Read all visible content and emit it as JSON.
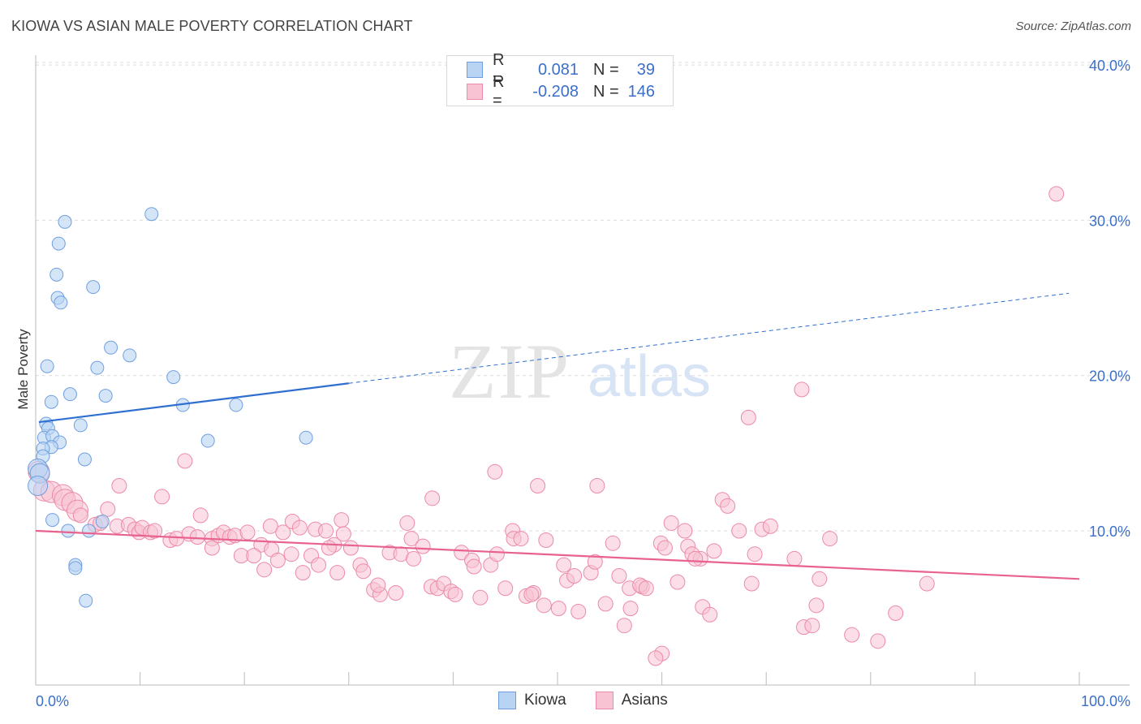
{
  "header": {
    "title": "KIOWA VS ASIAN MALE POVERTY CORRELATION CHART",
    "source": "Source: ZipAtlas.com"
  },
  "legend_top": {
    "rows": [
      {
        "r_label": "R =",
        "r_value": "0.081",
        "n_label": "N =",
        "n_value": "39"
      },
      {
        "r_label": "R =",
        "r_value": "-0.208",
        "n_label": "N =",
        "n_value": "146"
      }
    ]
  },
  "watermark": {
    "zip": "ZIP",
    "atlas": "atlas"
  },
  "colors": {
    "kiowa_fill": "#b9d3f3",
    "kiowa_stroke": "#6f9fe0",
    "kiowa_line": "#2f6fd1",
    "asians_fill": "#f8c3d3",
    "asians_stroke": "#ec8aa8",
    "asians_line": "#e8628f",
    "tick_label": "#3b6fc9",
    "grid": "#dddddd"
  },
  "chart_data": {
    "type": "scatter",
    "xlabel": "",
    "ylabel": "Male Poverty",
    "xlim": [
      0,
      100
    ],
    "ylim": [
      0,
      42
    ],
    "x_tick_labels": [
      {
        "value": 0,
        "label": "0.0%"
      },
      {
        "value": 100,
        "label": "100.0%"
      }
    ],
    "y_tick_labels": [
      {
        "value": 10,
        "label": "10.0%"
      },
      {
        "value": 20,
        "label": "20.0%"
      },
      {
        "value": 30,
        "label": "30.0%"
      },
      {
        "value": 40,
        "label": "40.0%"
      }
    ],
    "grid": "horizontal dashed",
    "legend": "bottom-center",
    "series": [
      {
        "name": "Kiowa",
        "trend": {
          "x0": 0.3,
          "y0": 17.0,
          "x1": 30,
          "y1": 19.5,
          "dashed_to_x": 99,
          "dashed_to_y": 25.3
        },
        "points": [
          [
            2.8,
            29.9
          ],
          [
            11.1,
            30.4
          ],
          [
            2.2,
            28.5
          ],
          [
            2.0,
            26.5
          ],
          [
            5.5,
            25.7
          ],
          [
            2.1,
            25.0
          ],
          [
            2.4,
            24.7
          ],
          [
            7.2,
            21.8
          ],
          [
            9.0,
            21.3
          ],
          [
            1.1,
            20.6
          ],
          [
            5.9,
            20.5
          ],
          [
            13.2,
            19.9
          ],
          [
            3.3,
            18.8
          ],
          [
            6.7,
            18.7
          ],
          [
            1.5,
            18.3
          ],
          [
            14.1,
            18.1
          ],
          [
            19.2,
            18.1
          ],
          [
            1.0,
            16.9
          ],
          [
            1.2,
            16.6
          ],
          [
            4.3,
            16.8
          ],
          [
            0.8,
            16.0
          ],
          [
            1.6,
            16.1
          ],
          [
            2.3,
            15.7
          ],
          [
            16.5,
            15.8
          ],
          [
            25.9,
            16.0
          ],
          [
            1.5,
            15.4
          ],
          [
            0.7,
            15.3
          ],
          [
            0.7,
            14.8
          ],
          [
            4.7,
            14.6
          ],
          [
            0.2,
            14.0
          ],
          [
            0.4,
            13.7
          ],
          [
            6.4,
            10.6
          ],
          [
            1.6,
            10.7
          ],
          [
            3.1,
            10.0
          ],
          [
            5.1,
            10.0
          ],
          [
            3.8,
            7.8
          ],
          [
            3.8,
            7.6
          ],
          [
            4.8,
            5.5
          ],
          [
            0.2,
            12.9
          ]
        ]
      },
      {
        "name": "Asians",
        "trend": {
          "x0": 0,
          "y0": 10.0,
          "x1": 100,
          "y1": 6.9
        },
        "points": [
          [
            0.3,
            13.8
          ],
          [
            0.8,
            12.6
          ],
          [
            1.5,
            12.5
          ],
          [
            2.6,
            12.3
          ],
          [
            2.8,
            12.0
          ],
          [
            3.5,
            11.8
          ],
          [
            4.0,
            11.3
          ],
          [
            4.3,
            11.0
          ],
          [
            6.9,
            11.4
          ],
          [
            5.7,
            10.4
          ],
          [
            6.2,
            10.5
          ],
          [
            7.8,
            10.3
          ],
          [
            8.0,
            12.9
          ],
          [
            8.9,
            10.4
          ],
          [
            9.5,
            10.1
          ],
          [
            9.9,
            9.9
          ],
          [
            10.2,
            10.2
          ],
          [
            11.0,
            9.9
          ],
          [
            11.4,
            10.0
          ],
          [
            12.1,
            12.2
          ],
          [
            14.3,
            14.5
          ],
          [
            15.8,
            11.0
          ],
          [
            16.9,
            9.5
          ],
          [
            17.5,
            9.7
          ],
          [
            18.0,
            9.9
          ],
          [
            18.6,
            9.6
          ],
          [
            19.1,
            9.7
          ],
          [
            20.3,
            9.9
          ],
          [
            21.6,
            9.1
          ],
          [
            22.5,
            10.3
          ],
          [
            23.7,
            9.9
          ],
          [
            24.6,
            10.6
          ],
          [
            25.3,
            10.2
          ],
          [
            26.8,
            10.1
          ],
          [
            27.8,
            10.0
          ],
          [
            28.6,
            9.1
          ],
          [
            29.3,
            10.7
          ],
          [
            29.5,
            9.8
          ],
          [
            12.9,
            9.4
          ],
          [
            13.5,
            9.5
          ],
          [
            14.7,
            9.8
          ],
          [
            15.5,
            9.6
          ],
          [
            16.9,
            8.9
          ],
          [
            19.7,
            8.4
          ],
          [
            20.9,
            8.4
          ],
          [
            21.9,
            7.5
          ],
          [
            22.6,
            8.8
          ],
          [
            23.2,
            8.1
          ],
          [
            24.5,
            8.5
          ],
          [
            25.6,
            7.3
          ],
          [
            26.4,
            8.4
          ],
          [
            27.1,
            7.8
          ],
          [
            28.1,
            8.9
          ],
          [
            28.9,
            7.3
          ],
          [
            30.2,
            8.9
          ],
          [
            31.1,
            7.8
          ],
          [
            31.4,
            7.4
          ],
          [
            32.4,
            6.2
          ],
          [
            33.0,
            5.9
          ],
          [
            34.5,
            6.0
          ],
          [
            32.8,
            6.5
          ],
          [
            33.9,
            8.6
          ],
          [
            35.0,
            8.5
          ],
          [
            35.6,
            10.5
          ],
          [
            36.0,
            9.5
          ],
          [
            37.1,
            9.0
          ],
          [
            36.2,
            8.2
          ],
          [
            38.0,
            12.1
          ],
          [
            37.9,
            6.4
          ],
          [
            38.5,
            6.3
          ],
          [
            39.1,
            6.6
          ],
          [
            39.8,
            6.1
          ],
          [
            40.2,
            5.9
          ],
          [
            40.8,
            8.6
          ],
          [
            41.8,
            8.1
          ],
          [
            42.0,
            7.7
          ],
          [
            42.6,
            5.7
          ],
          [
            43.6,
            7.8
          ],
          [
            44.0,
            13.8
          ],
          [
            44.2,
            8.5
          ],
          [
            45.0,
            6.3
          ],
          [
            45.7,
            10.0
          ],
          [
            45.8,
            9.5
          ],
          [
            46.5,
            9.5
          ],
          [
            47.0,
            5.8
          ],
          [
            47.7,
            6.0
          ],
          [
            48.1,
            12.9
          ],
          [
            47.5,
            5.9
          ],
          [
            48.7,
            5.2
          ],
          [
            48.9,
            9.4
          ],
          [
            50.1,
            5.0
          ],
          [
            50.6,
            7.8
          ],
          [
            50.9,
            6.8
          ],
          [
            51.6,
            7.1
          ],
          [
            52.0,
            4.8
          ],
          [
            53.2,
            7.3
          ],
          [
            53.6,
            8.0
          ],
          [
            53.8,
            12.9
          ],
          [
            54.6,
            5.3
          ],
          [
            55.3,
            9.2
          ],
          [
            55.9,
            7.1
          ],
          [
            56.4,
            3.9
          ],
          [
            56.9,
            6.3
          ],
          [
            57.0,
            5.0
          ],
          [
            58.1,
            6.4
          ],
          [
            57.9,
            6.5
          ],
          [
            58.5,
            6.3
          ],
          [
            59.9,
            9.2
          ],
          [
            60.3,
            8.9
          ],
          [
            60.9,
            10.5
          ],
          [
            61.5,
            6.7
          ],
          [
            62.2,
            10.0
          ],
          [
            62.5,
            9.0
          ],
          [
            62.9,
            8.5
          ],
          [
            63.7,
            8.2
          ],
          [
            63.2,
            8.2
          ],
          [
            60.0,
            2.1
          ],
          [
            59.4,
            1.8
          ],
          [
            63.9,
            5.1
          ],
          [
            64.6,
            4.6
          ],
          [
            65.0,
            8.7
          ],
          [
            65.8,
            12.0
          ],
          [
            66.3,
            11.6
          ],
          [
            67.4,
            10.0
          ],
          [
            68.6,
            6.6
          ],
          [
            68.9,
            8.5
          ],
          [
            69.6,
            10.1
          ],
          [
            70.4,
            10.3
          ],
          [
            72.7,
            8.2
          ],
          [
            73.6,
            3.8
          ],
          [
            74.4,
            3.9
          ],
          [
            74.8,
            5.2
          ],
          [
            75.1,
            6.9
          ],
          [
            76.1,
            9.5
          ],
          [
            68.3,
            17.3
          ],
          [
            73.4,
            19.1
          ],
          [
            78.2,
            3.3
          ],
          [
            80.7,
            2.9
          ],
          [
            82.4,
            4.7
          ],
          [
            85.4,
            6.6
          ],
          [
            97.8,
            31.7
          ]
        ]
      }
    ]
  }
}
